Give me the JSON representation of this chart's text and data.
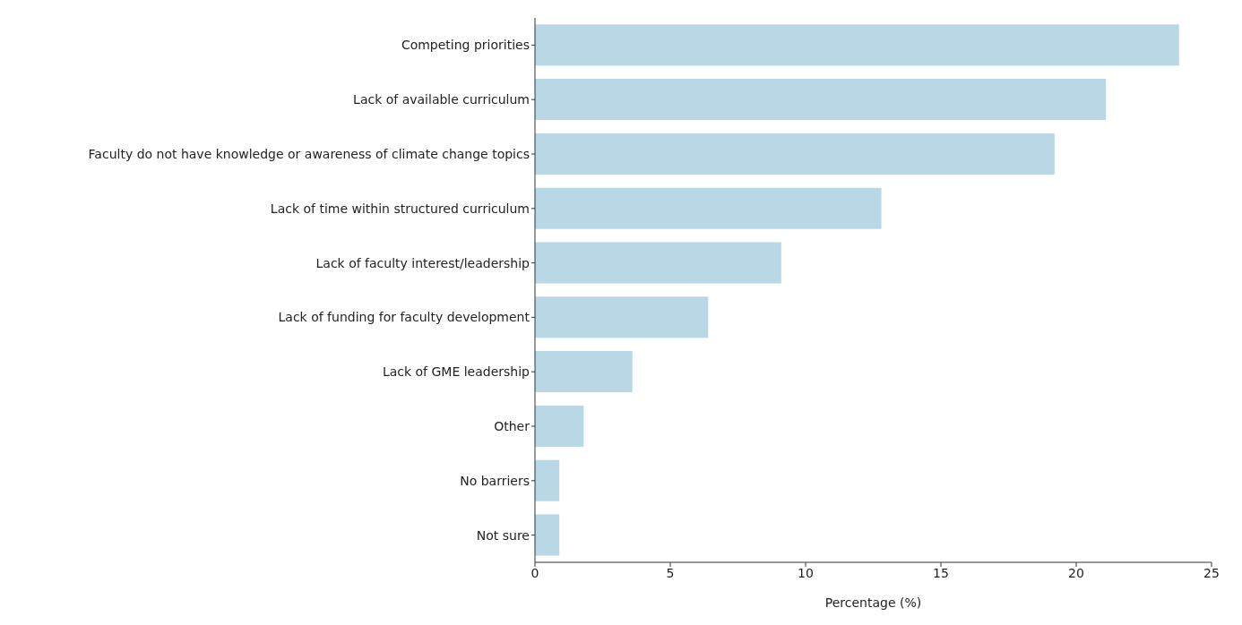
{
  "chart_data": {
    "type": "bar",
    "orientation": "horizontal",
    "xlabel": "Percentage (%)",
    "categories": [
      "Competing priorities",
      "Lack of available curriculum",
      "Faculty do not have knowledge or awareness of climate change topics",
      "Lack of time within structured curriculum",
      "Lack of faculty interest/leadership",
      "Lack of funding for faculty development",
      "Lack of GME leadership",
      "Other",
      "No barriers",
      "Not sure"
    ],
    "values": [
      23.8,
      21.1,
      19.2,
      12.8,
      9.1,
      6.4,
      3.6,
      1.8,
      0.9,
      0.9
    ],
    "color": "#b8d8e5",
    "xlim": [
      0,
      25
    ],
    "xticks": [
      0,
      5,
      10,
      15,
      20,
      25
    ],
    "grid": false,
    "legend": false
  }
}
